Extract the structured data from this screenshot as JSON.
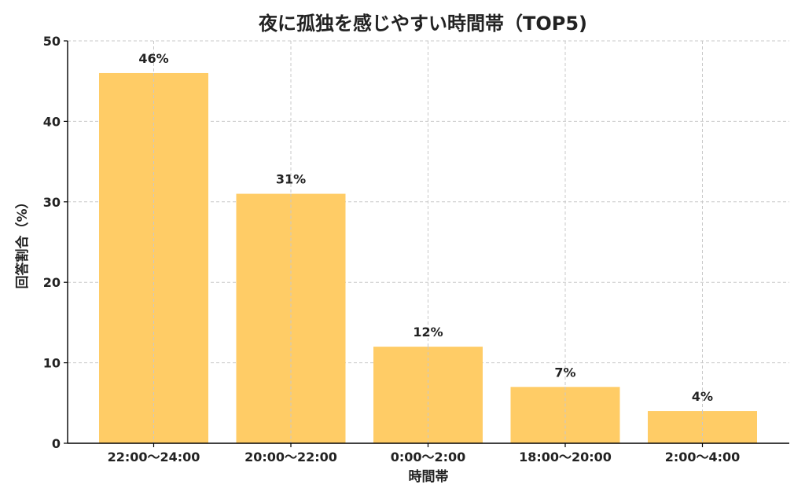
{
  "chart_data": {
    "type": "bar",
    "title": "夜に孤独を感じやすい時間帯（TOP5)",
    "xlabel": "時間帯",
    "ylabel": "回答割合（%）",
    "categories": [
      "22:00〜24:00",
      "20:00〜22:00",
      "0:00〜2:00",
      "18:00〜20:00",
      "2:00〜4:00"
    ],
    "values": [
      46,
      31,
      12,
      7,
      4
    ],
    "data_labels": [
      "46%",
      "31%",
      "12%",
      "7%",
      "4%"
    ],
    "ylim": [
      0,
      50
    ],
    "yticks": [
      0,
      10,
      20,
      30,
      40,
      50
    ],
    "grid": true,
    "bar_color": "#FFCC66"
  }
}
